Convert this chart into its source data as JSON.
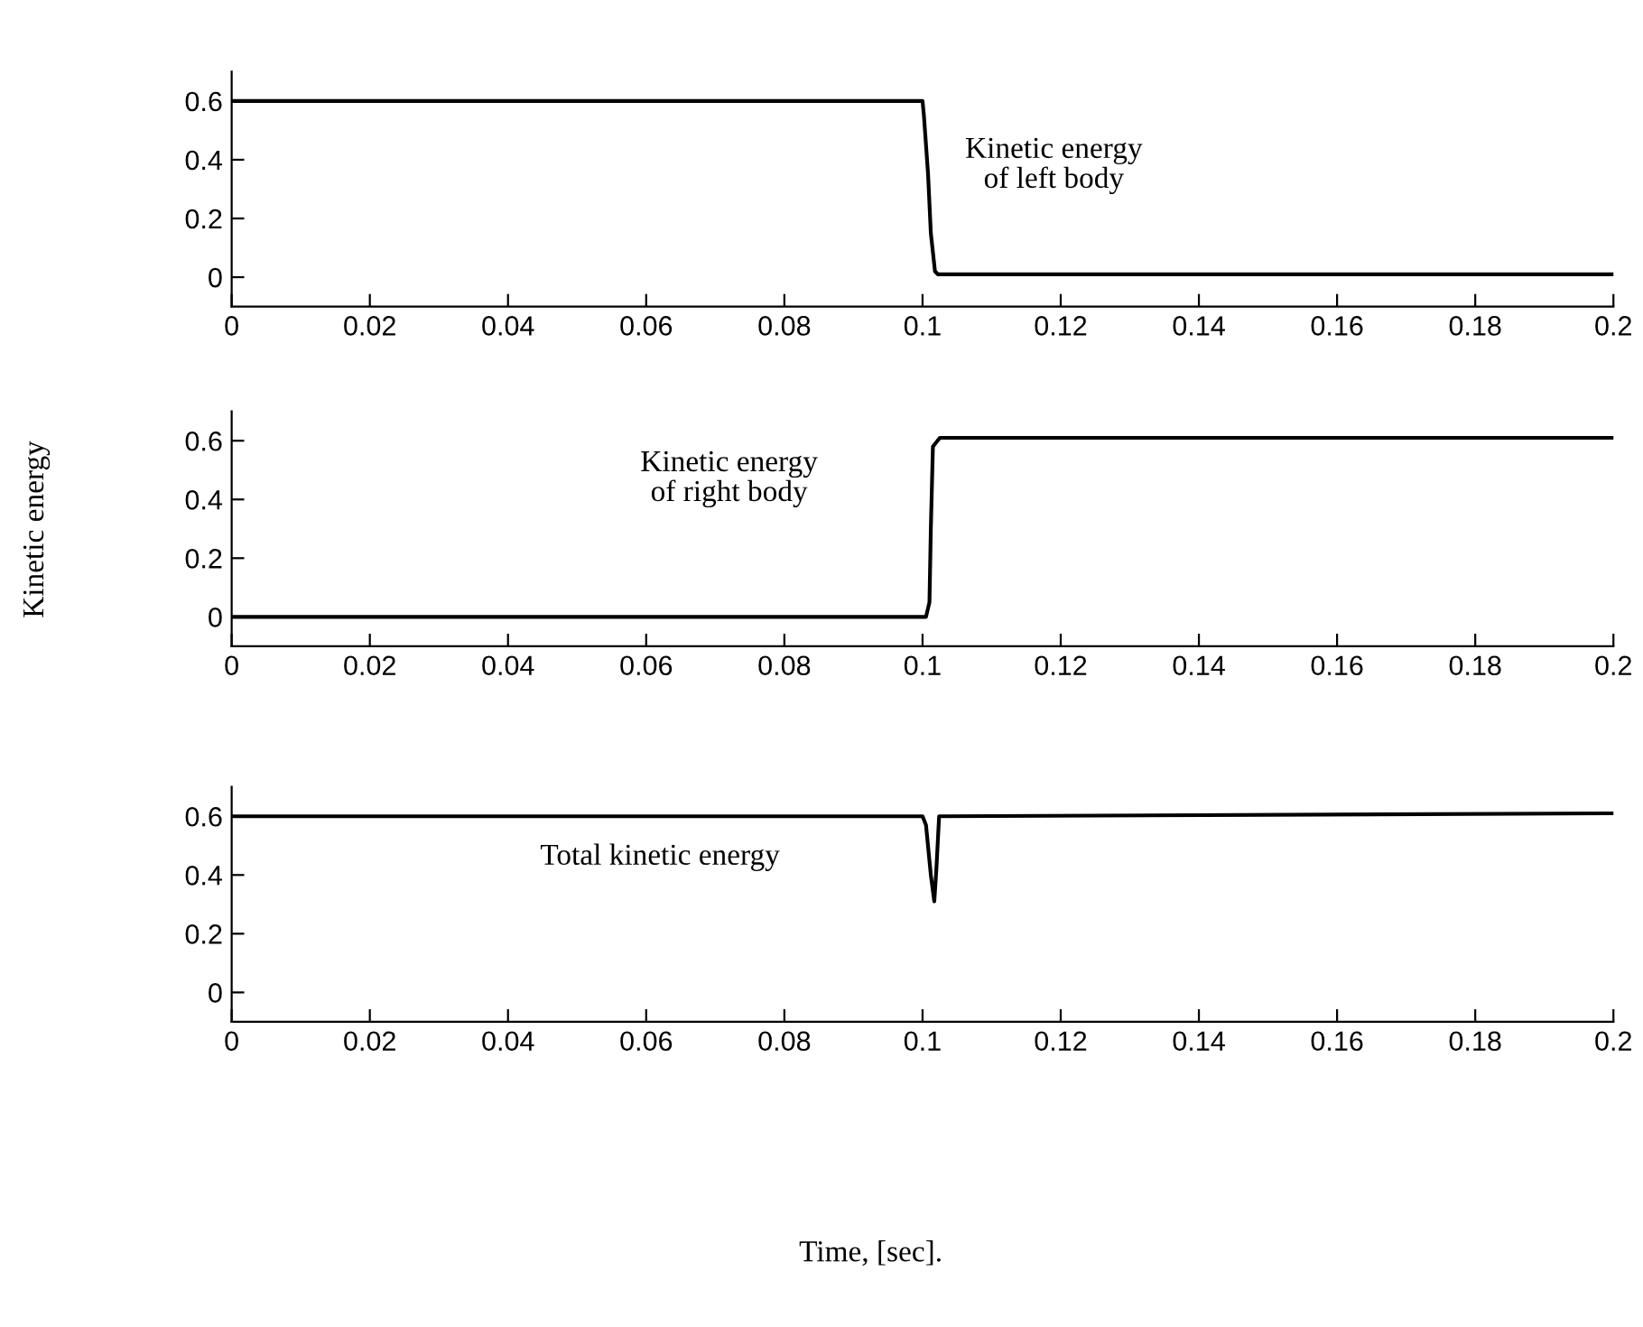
{
  "chart_data": [
    {
      "type": "line",
      "x": [
        0,
        0.1,
        0.1002,
        0.1008,
        0.1012,
        0.1018,
        0.1022,
        0.2
      ],
      "series": [
        {
          "color": "#000000",
          "values": [
            0.6,
            0.6,
            0.55,
            0.35,
            0.15,
            0.02,
            0.01,
            0.01
          ]
        }
      ],
      "xlim": [
        0,
        0.2
      ],
      "xticks": [
        0,
        0.02,
        0.04,
        0.06,
        0.08,
        0.1,
        0.12,
        0.14,
        0.16,
        0.18,
        0.2
      ],
      "ylim": [
        -0.1,
        0.7
      ],
      "yticks": [
        0,
        0.2,
        0.4,
        0.6
      ],
      "annotations": [
        "Kinetic energy\nof left body"
      ]
    },
    {
      "type": "line",
      "x": [
        0,
        0.1005,
        0.101,
        0.1012,
        0.1015,
        0.1025,
        0.2
      ],
      "series": [
        {
          "color": "#000000",
          "values": [
            0,
            0,
            0.05,
            0.3,
            0.58,
            0.61,
            0.61
          ]
        }
      ],
      "xlim": [
        0,
        0.2
      ],
      "xticks": [
        0,
        0.02,
        0.04,
        0.06,
        0.08,
        0.1,
        0.12,
        0.14,
        0.16,
        0.18,
        0.2
      ],
      "ylim": [
        -0.1,
        0.7
      ],
      "yticks": [
        0,
        0.2,
        0.4,
        0.6
      ],
      "ylabel": "Kinetic energy",
      "annotations": [
        "Kinetic energy\nof right body"
      ]
    },
    {
      "type": "line",
      "x": [
        0,
        0.1,
        0.1005,
        0.1012,
        0.1017,
        0.102,
        0.1024,
        0.2
      ],
      "series": [
        {
          "color": "#000000",
          "values": [
            0.6,
            0.6,
            0.57,
            0.4,
            0.31,
            0.42,
            0.6,
            0.61
          ]
        }
      ],
      "xlim": [
        0,
        0.2
      ],
      "xticks": [
        0,
        0.02,
        0.04,
        0.06,
        0.08,
        0.1,
        0.12,
        0.14,
        0.16,
        0.18,
        0.2
      ],
      "ylim": [
        -0.1,
        0.7
      ],
      "yticks": [
        0,
        0.2,
        0.4,
        0.6
      ],
      "xlabel": "Time, [sec].",
      "annotations": [
        "Total kinetic energy"
      ]
    }
  ]
}
